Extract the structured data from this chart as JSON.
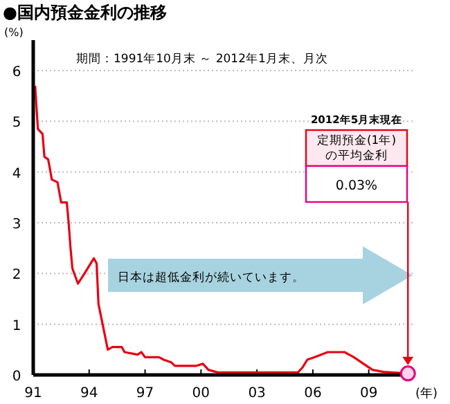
{
  "chart_data": {
    "type": "line",
    "title": "●国内預金金利の推移",
    "subtitle": "期間：1991年10月末 ～ 2012年1月末、月次",
    "ylabel": "(%)",
    "xlabel": "(年)",
    "x": [
      1991.1,
      1991.25,
      1991.5,
      1991.6,
      1991.8,
      1992.0,
      1992.3,
      1992.5,
      1992.8,
      1992.9,
      1993.0,
      1993.1,
      1993.4,
      1993.75,
      1994.0,
      1994.25,
      1994.4,
      1994.5,
      1994.75,
      1995.0,
      1995.25,
      1995.75,
      1995.9,
      1996.6,
      1996.8,
      1997.0,
      1997.75,
      1998.0,
      1998.4,
      1998.6,
      1999.75,
      2000.1,
      2000.4,
      2000.9,
      2005.2,
      2005.45,
      2005.7,
      2006.1,
      2006.8,
      2007.7,
      2008.2,
      2008.8,
      2009.2,
      2009.8,
      2010.7,
      2011.1
    ],
    "series": [
      {
        "color": "#e60012",
        "values": [
          5.7,
          4.85,
          4.75,
          4.3,
          4.25,
          3.85,
          3.8,
          3.4,
          3.4,
          3.0,
          2.5,
          2.1,
          1.8,
          2.0,
          2.15,
          2.3,
          2.2,
          1.4,
          0.95,
          0.5,
          0.55,
          0.55,
          0.45,
          0.4,
          0.45,
          0.35,
          0.35,
          0.3,
          0.25,
          0.18,
          0.18,
          0.22,
          0.1,
          0.05,
          0.05,
          0.15,
          0.3,
          0.35,
          0.45,
          0.45,
          0.35,
          0.2,
          0.1,
          0.06,
          0.04,
          0.03
        ]
      }
    ],
    "xlim": [
      1991,
      2011.5
    ],
    "xticks": [
      {
        "value": 1991,
        "label": "91"
      },
      {
        "value": 1994,
        "label": "94"
      },
      {
        "value": 1997,
        "label": "97"
      },
      {
        "value": 2000,
        "label": "00"
      },
      {
        "value": 2003,
        "label": "03"
      },
      {
        "value": 2006,
        "label": "06"
      },
      {
        "value": 2009,
        "label": "09"
      }
    ],
    "ylim": [
      0,
      6.6
    ],
    "yticks": [
      0,
      1,
      2,
      3,
      4,
      5,
      6
    ],
    "grid": "y",
    "marker": "none",
    "line_style": "solid",
    "annotations": [
      "2012年5月末現在",
      "定期預金(1年)\nの平均金利",
      "0.03%",
      "日本は超低金利が続いています。"
    ]
  }
}
